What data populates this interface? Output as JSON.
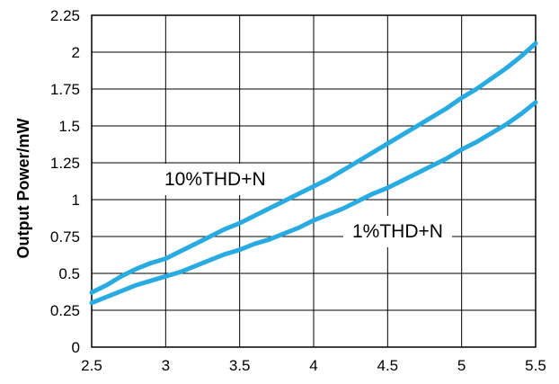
{
  "chart_data": {
    "type": "line",
    "title": "",
    "xlabel": "",
    "ylabel": "Output Power/mW",
    "xlim": [
      2.5,
      5.5
    ],
    "ylim": [
      0,
      2.25
    ],
    "xticks": [
      "2.5",
      "3",
      "3.5",
      "4",
      "4.5",
      "5",
      "5.5"
    ],
    "yticks": [
      "0",
      "0.25",
      "0.5",
      "0.75",
      "1",
      "1.25",
      "1.5",
      "1.75",
      "2",
      "2.25"
    ],
    "grid": true,
    "line_color": "#29ABE2",
    "series": [
      {
        "name": "10%THD+N",
        "x": [
          2.5,
          2.6,
          2.7,
          2.8,
          2.9,
          3.0,
          3.1,
          3.2,
          3.3,
          3.4,
          3.5,
          3.6,
          3.7,
          3.8,
          3.9,
          4.0,
          4.1,
          4.2,
          4.3,
          4.4,
          4.5,
          4.6,
          4.7,
          4.8,
          4.9,
          5.0,
          5.1,
          5.2,
          5.3,
          5.4,
          5.5
        ],
        "y": [
          0.37,
          0.42,
          0.48,
          0.53,
          0.57,
          0.6,
          0.65,
          0.7,
          0.75,
          0.8,
          0.84,
          0.89,
          0.94,
          0.99,
          1.04,
          1.09,
          1.14,
          1.2,
          1.26,
          1.32,
          1.38,
          1.44,
          1.5,
          1.56,
          1.62,
          1.69,
          1.75,
          1.82,
          1.89,
          1.97,
          2.06
        ]
      },
      {
        "name": "1%THD+N",
        "x": [
          2.5,
          2.6,
          2.7,
          2.8,
          2.9,
          3.0,
          3.1,
          3.2,
          3.3,
          3.4,
          3.5,
          3.6,
          3.7,
          3.8,
          3.9,
          4.0,
          4.1,
          4.2,
          4.3,
          4.4,
          4.5,
          4.6,
          4.7,
          4.8,
          4.9,
          5.0,
          5.1,
          5.2,
          5.3,
          5.4,
          5.5
        ],
        "y": [
          0.3,
          0.34,
          0.38,
          0.42,
          0.45,
          0.48,
          0.51,
          0.55,
          0.59,
          0.63,
          0.66,
          0.7,
          0.73,
          0.77,
          0.81,
          0.86,
          0.9,
          0.94,
          0.99,
          1.04,
          1.08,
          1.13,
          1.18,
          1.23,
          1.28,
          1.34,
          1.39,
          1.45,
          1.51,
          1.58,
          1.66
        ]
      }
    ]
  }
}
